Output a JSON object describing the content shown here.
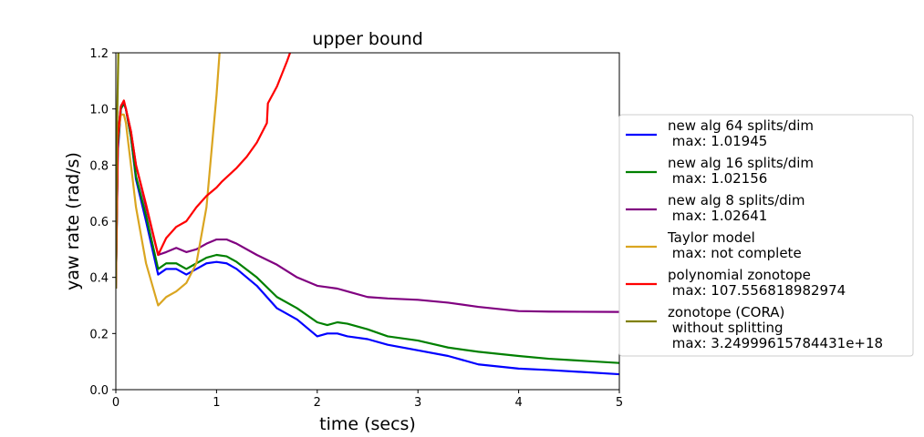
{
  "chart_data": {
    "type": "line",
    "title": "upper bound",
    "xlabel": "time (secs)",
    "ylabel": "yaw rate (rad/s)",
    "xlim": [
      0,
      5
    ],
    "ylim": [
      0,
      1.2
    ],
    "xticks": [
      0,
      1,
      2,
      3,
      4,
      5
    ],
    "yticks": [
      {
        "value": 0,
        "label": "0.0"
      },
      {
        "value": 0.2,
        "label": "0.2"
      },
      {
        "value": 0.4,
        "label": "0.4"
      },
      {
        "value": 0.6,
        "label": "0.6"
      },
      {
        "value": 0.8,
        "label": "0.8"
      },
      {
        "value": 1.0,
        "label": "1.0"
      },
      {
        "value": 1.2,
        "label": "1.2"
      }
    ],
    "legend": "outside right",
    "series": [
      {
        "name": "new alg 64 splits/dim\n max: 1.01945",
        "color": "#0000ff",
        "x": [
          0,
          0.02,
          0.05,
          0.08,
          0.1,
          0.15,
          0.2,
          0.3,
          0.42,
          0.5,
          0.6,
          0.7,
          0.8,
          0.9,
          1.0,
          1.1,
          1.2,
          1.4,
          1.6,
          1.8,
          2.0,
          2.1,
          2.2,
          2.3,
          2.5,
          2.7,
          3.0,
          3.3,
          3.6,
          4.0,
          4.3,
          5.0
        ],
        "values": [
          0.36,
          0.85,
          1.0,
          1.02,
          1.0,
          0.9,
          0.75,
          0.6,
          0.41,
          0.43,
          0.43,
          0.41,
          0.43,
          0.45,
          0.455,
          0.45,
          0.43,
          0.37,
          0.29,
          0.25,
          0.19,
          0.2,
          0.2,
          0.19,
          0.18,
          0.16,
          0.14,
          0.12,
          0.09,
          0.075,
          0.07,
          0.055
        ]
      },
      {
        "name": "new alg 16 splits/dim\n max: 1.02156",
        "color": "#008000",
        "x": [
          0,
          0.02,
          0.05,
          0.08,
          0.1,
          0.15,
          0.2,
          0.3,
          0.42,
          0.5,
          0.6,
          0.7,
          0.8,
          0.9,
          1.0,
          1.1,
          1.2,
          1.4,
          1.6,
          1.8,
          2.0,
          2.1,
          2.2,
          2.3,
          2.5,
          2.7,
          3.0,
          3.3,
          3.6,
          4.0,
          4.3,
          5.0
        ],
        "values": [
          0.36,
          0.87,
          1.0,
          1.02,
          1.0,
          0.9,
          0.76,
          0.62,
          0.43,
          0.45,
          0.45,
          0.43,
          0.45,
          0.47,
          0.48,
          0.475,
          0.455,
          0.4,
          0.33,
          0.29,
          0.24,
          0.23,
          0.24,
          0.235,
          0.215,
          0.19,
          0.175,
          0.15,
          0.135,
          0.12,
          0.11,
          0.095
        ]
      },
      {
        "name": "new alg 8 splits/dim\n max: 1.02641",
        "color": "#800080",
        "x": [
          0,
          0.02,
          0.05,
          0.08,
          0.1,
          0.15,
          0.2,
          0.3,
          0.42,
          0.5,
          0.6,
          0.7,
          0.8,
          0.9,
          1.0,
          1.1,
          1.2,
          1.4,
          1.6,
          1.8,
          2.0,
          2.1,
          2.2,
          2.3,
          2.5,
          2.7,
          3.0,
          3.3,
          3.6,
          4.0,
          4.3,
          5.0
        ],
        "values": [
          0.36,
          0.9,
          1.01,
          1.026,
          1.0,
          0.92,
          0.8,
          0.65,
          0.48,
          0.49,
          0.505,
          0.49,
          0.5,
          0.52,
          0.535,
          0.535,
          0.52,
          0.48,
          0.445,
          0.4,
          0.37,
          0.365,
          0.36,
          0.35,
          0.33,
          0.325,
          0.32,
          0.31,
          0.295,
          0.28,
          0.278,
          0.277
        ]
      },
      {
        "name": "Taylor model\n max: not complete",
        "color": "#daa520",
        "x": [
          0,
          0.02,
          0.05,
          0.08,
          0.1,
          0.15,
          0.2,
          0.3,
          0.42,
          0.5,
          0.6,
          0.7,
          0.8,
          0.9,
          0.95,
          1.0,
          1.03
        ],
        "values": [
          0.36,
          0.9,
          0.98,
          0.98,
          0.95,
          0.8,
          0.65,
          0.45,
          0.3,
          0.33,
          0.35,
          0.38,
          0.45,
          0.65,
          0.85,
          1.05,
          1.2
        ]
      },
      {
        "name": "polynomial zonotope\n max: 107.556818982974",
        "color": "#ff0000",
        "x": [
          0,
          0.02,
          0.05,
          0.08,
          0.1,
          0.15,
          0.2,
          0.3,
          0.42,
          0.5,
          0.6,
          0.7,
          0.8,
          0.9,
          1.0,
          1.05,
          1.2,
          1.3,
          1.4,
          1.5,
          1.51,
          1.6,
          1.7,
          1.73
        ],
        "values": [
          0.36,
          0.9,
          1.01,
          1.03,
          1.0,
          0.92,
          0.8,
          0.66,
          0.48,
          0.54,
          0.58,
          0.6,
          0.65,
          0.69,
          0.72,
          0.74,
          0.79,
          0.83,
          0.88,
          0.95,
          1.02,
          1.08,
          1.17,
          1.2
        ]
      },
      {
        "name": "zonotope (CORA)\n without splitting\n max: 3.24999615784431e+18",
        "color": "#808000",
        "x": [
          0,
          0.01,
          0.025
        ],
        "values": [
          0.36,
          0.9,
          1.2
        ]
      }
    ]
  }
}
